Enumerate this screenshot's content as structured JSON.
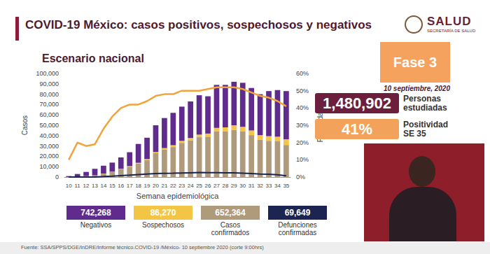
{
  "header": {
    "title": "COVID-19 México: casos positivos, sospechosos y negativos",
    "logo": "SALUD",
    "logo_sub": "SECRETARÍA DE SALUD",
    "subtitle": "Escenario nacional"
  },
  "panel": {
    "phase": "Fase 3",
    "date": "10 septiembre, 2020",
    "stats": [
      {
        "value": "1,480,902",
        "label": "Personas estudiadas",
        "color": "#6b1f3d"
      },
      {
        "value": "41%",
        "label": "Positividad SE 35",
        "color": "#f2a25a"
      }
    ]
  },
  "source": "Fuente: SSA/SPPS/DGE/InDRE/Informe técnico.COVID-19 /México- 10 septiembre 2020 (corte 9:00hrs)",
  "chart_data": {
    "type": "bar",
    "stacked": true,
    "grid": false,
    "x_label": "Semana epidemiológica",
    "y_label": "Casos",
    "y2_label": "Positividad",
    "categories": [
      "10",
      "11",
      "12",
      "13",
      "14",
      "15",
      "16",
      "17",
      "18",
      "19",
      "20",
      "21",
      "22",
      "23",
      "24",
      "25",
      "26",
      "27",
      "28",
      "29",
      "30",
      "31",
      "32",
      "33",
      "34",
      "35"
    ],
    "ylim": [
      0,
      100000
    ],
    "yticks": [
      0,
      {
        "value": 10000,
        "label": "10,000"
      },
      {
        "value": 20000,
        "label": "20,000"
      },
      {
        "value": 30000,
        "label": "30,000"
      },
      {
        "value": 40000,
        "label": "40,000"
      },
      {
        "value": 50000,
        "label": "50,000"
      },
      {
        "value": 60000,
        "label": "60,000"
      },
      {
        "value": 70000,
        "label": "70,000"
      },
      {
        "value": 80000,
        "label": "80,000"
      },
      {
        "value": 90000,
        "label": "90,000"
      },
      {
        "value": 100000,
        "label": "100,000"
      }
    ],
    "y2lim": [
      0,
      60
    ],
    "y2ticks": [
      {
        "value": 0,
        "label": "0%"
      },
      {
        "value": 10,
        "label": "10%"
      },
      {
        "value": 20,
        "label": "20%"
      },
      {
        "value": 30,
        "label": "30%"
      },
      {
        "value": 40,
        "label": "40%"
      },
      {
        "value": 50,
        "label": "50%"
      },
      {
        "value": 60,
        "label": "60%"
      }
    ],
    "series": [
      {
        "name": "Casos confirmados",
        "type": "bar",
        "color": "#b09a7c",
        "total": "652,364",
        "values": [
          100,
          550,
          900,
          1500,
          3000,
          4800,
          7500,
          10000,
          13000,
          16500,
          23000,
          26500,
          29000,
          33000,
          35500,
          38500,
          39000,
          44000,
          44000,
          45500,
          44000,
          40500,
          36000,
          35000,
          34500,
          31000
        ]
      },
      {
        "name": "Sospechosos",
        "type": "bar",
        "color": "#f4c545",
        "total": "86,270",
        "values": [
          20,
          50,
          100,
          200,
          300,
          400,
          500,
          600,
          800,
          900,
          1200,
          1500,
          1800,
          2000,
          2200,
          2500,
          3000,
          3500,
          4000,
          4500,
          4500,
          4500,
          4500,
          4500,
          4500,
          5500
        ]
      },
      {
        "name": "Negativos",
        "type": "bar",
        "color": "#5f2b8c",
        "total": "742,268",
        "values": [
          880,
          2400,
          4000,
          6300,
          7700,
          8800,
          11000,
          13400,
          18200,
          20600,
          25800,
          29000,
          31200,
          33000,
          35300,
          38000,
          36000,
          41500,
          41000,
          42000,
          42500,
          41000,
          39500,
          43500,
          45000,
          46500
        ]
      },
      {
        "name": "Defunciones confirmadas",
        "type": "line",
        "color": "#1c2452",
        "total": "69,649",
        "values": [
          0,
          5,
          30,
          150,
          500,
          900,
          1400,
          1900,
          2500,
          3000,
          3400,
          3600,
          3700,
          4000,
          4200,
          4400,
          4300,
          4300,
          4200,
          4100,
          3800,
          3500,
          3000,
          2700,
          2200,
          1200
        ]
      },
      {
        "type": "line",
        "axis": "y2",
        "color": "#f2a33a",
        "values": [
          10,
          20,
          18,
          19,
          28,
          35,
          40,
          42,
          42,
          44,
          47,
          48,
          48,
          50,
          50,
          50,
          51,
          52,
          52,
          52,
          51,
          49,
          47,
          46,
          44,
          41
        ]
      }
    ]
  }
}
